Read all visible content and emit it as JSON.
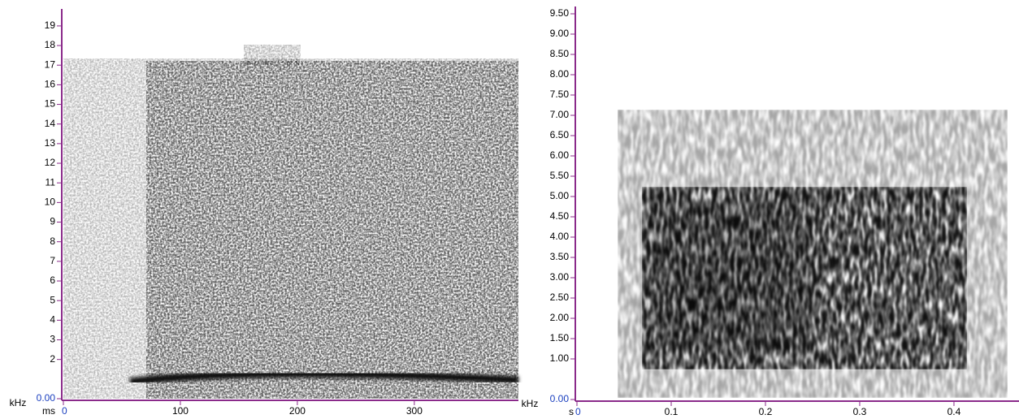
{
  "chart_data": [
    {
      "type": "spectrogram",
      "y_label": "kHz",
      "x_label": "ms",
      "xlim": [
        0,
        389
      ],
      "xticks": [
        0,
        100,
        200,
        300
      ],
      "ylim": [
        0,
        19.7
      ],
      "yticks": [
        {
          "value": 0,
          "label": "0.00"
        },
        2,
        3,
        4,
        5,
        6,
        7,
        8,
        9,
        10,
        11,
        12,
        13,
        14,
        15,
        16,
        17,
        18,
        19
      ]
    },
    {
      "type": "spectrogram",
      "y_label": "kHz",
      "x_label": "s",
      "xlim": [
        0,
        0.469
      ],
      "xticks": [
        0,
        0.1,
        0.2,
        0.3,
        0.4
      ],
      "ylim": [
        0,
        9.6
      ],
      "yticks": [
        {
          "value": 0,
          "label": "0.00"
        },
        {
          "value": 1,
          "label": "1.00"
        },
        {
          "value": 1.5,
          "label": "1.50"
        },
        {
          "value": 2,
          "label": "2.00"
        },
        {
          "value": 2.5,
          "label": "2.50"
        },
        {
          "value": 3,
          "label": "3.00"
        },
        {
          "value": 3.5,
          "label": "3.50"
        },
        {
          "value": 4,
          "label": "4.00"
        },
        {
          "value": 4.5,
          "label": "4.50"
        },
        {
          "value": 5,
          "label": "5.00"
        },
        {
          "value": 5.5,
          "label": "5.50"
        },
        {
          "value": 6,
          "label": "6.00"
        },
        {
          "value": 6.5,
          "label": "6.50"
        },
        {
          "value": 7,
          "label": "7.00"
        },
        {
          "value": 7.5,
          "label": "7.50"
        },
        {
          "value": 8,
          "label": "8.00"
        },
        {
          "value": 8.5,
          "label": "8.50"
        },
        {
          "value": 9,
          "label": "9.00"
        },
        {
          "value": 9.5,
          "label": "9.50"
        }
      ]
    }
  ]
}
